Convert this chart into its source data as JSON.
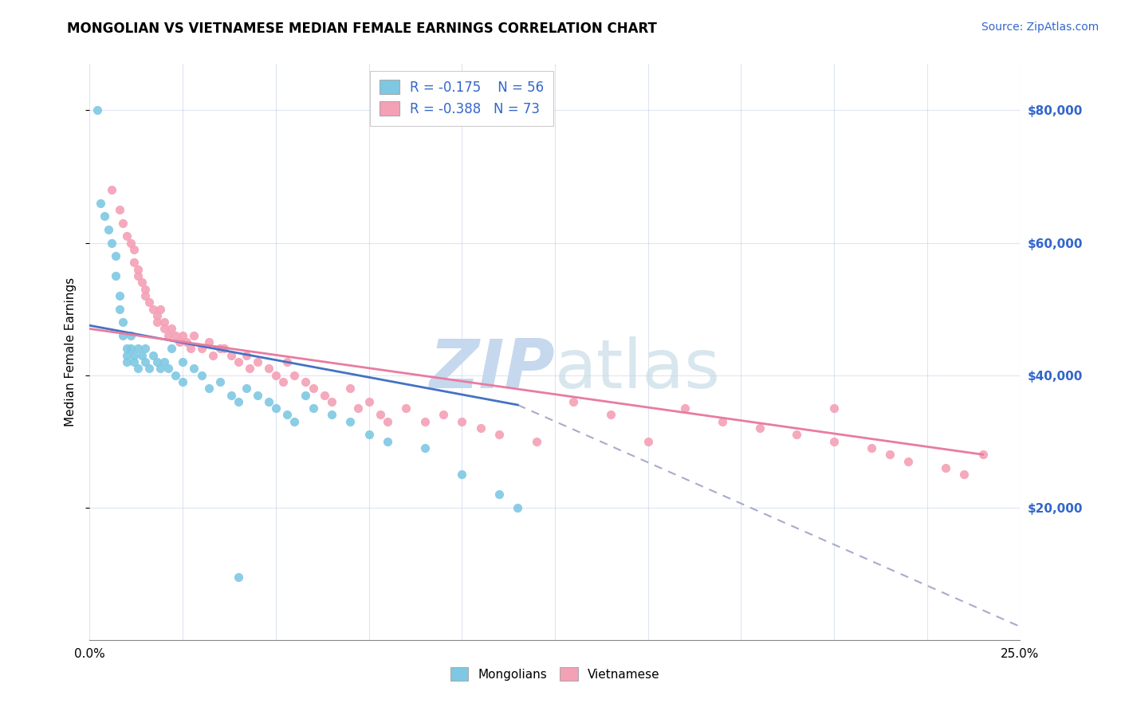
{
  "title": "MONGOLIAN VS VIETNAMESE MEDIAN FEMALE EARNINGS CORRELATION CHART",
  "source": "Source: ZipAtlas.com",
  "ylabel": "Median Female Earnings",
  "legend_mongolians": "Mongolians",
  "legend_vietnamese": "Vietnamese",
  "mongolian_R": "-0.175",
  "mongolian_N": "56",
  "vietnamese_R": "-0.388",
  "vietnamese_N": "73",
  "xlim": [
    0.0,
    0.25
  ],
  "ylim": [
    0,
    87000
  ],
  "yticks": [
    20000,
    40000,
    60000,
    80000
  ],
  "ytick_labels": [
    "$20,000",
    "$40,000",
    "$60,000",
    "$80,000"
  ],
  "color_mongolian": "#7ec8e3",
  "color_vietnamese": "#f4a0b5",
  "color_mongolian_line": "#4472c4",
  "color_vietnamese_line": "#e87ca0",
  "color_dashed_line": "#aaaacc",
  "mong_line_x0": 0.0,
  "mong_line_y0": 47500,
  "mong_line_x1": 0.115,
  "mong_line_y1": 35500,
  "viet_line_x0": 0.0,
  "viet_line_y0": 47000,
  "viet_line_x1": 0.24,
  "viet_line_y1": 28000,
  "dash_line_x0": 0.115,
  "dash_line_y0": 35500,
  "dash_line_x1": 0.25,
  "dash_line_y1": 2000,
  "mong_x": [
    0.002,
    0.003,
    0.004,
    0.005,
    0.006,
    0.007,
    0.007,
    0.008,
    0.008,
    0.009,
    0.009,
    0.01,
    0.01,
    0.01,
    0.011,
    0.011,
    0.012,
    0.012,
    0.013,
    0.013,
    0.014,
    0.015,
    0.015,
    0.016,
    0.017,
    0.018,
    0.019,
    0.02,
    0.021,
    0.022,
    0.023,
    0.025,
    0.025,
    0.028,
    0.03,
    0.032,
    0.035,
    0.038,
    0.04,
    0.042,
    0.045,
    0.048,
    0.05,
    0.053,
    0.055,
    0.058,
    0.06,
    0.065,
    0.07,
    0.075,
    0.08,
    0.09,
    0.1,
    0.11,
    0.115,
    0.04
  ],
  "mong_y": [
    80000,
    66000,
    64000,
    62000,
    60000,
    58000,
    55000,
    52000,
    50000,
    48000,
    46000,
    44000,
    43000,
    42000,
    46000,
    44000,
    43000,
    42000,
    44000,
    41000,
    43000,
    42000,
    44000,
    41000,
    43000,
    42000,
    41000,
    42000,
    41000,
    44000,
    40000,
    42000,
    39000,
    41000,
    40000,
    38000,
    39000,
    37000,
    36000,
    38000,
    37000,
    36000,
    35000,
    34000,
    33000,
    37000,
    35000,
    34000,
    33000,
    31000,
    30000,
    29000,
    25000,
    22000,
    20000,
    9500
  ],
  "viet_x": [
    0.006,
    0.008,
    0.009,
    0.01,
    0.011,
    0.012,
    0.012,
    0.013,
    0.013,
    0.014,
    0.015,
    0.015,
    0.016,
    0.017,
    0.018,
    0.018,
    0.019,
    0.02,
    0.02,
    0.021,
    0.022,
    0.023,
    0.024,
    0.025,
    0.026,
    0.027,
    0.028,
    0.03,
    0.032,
    0.033,
    0.035,
    0.036,
    0.038,
    0.04,
    0.042,
    0.043,
    0.045,
    0.048,
    0.05,
    0.052,
    0.053,
    0.055,
    0.058,
    0.06,
    0.063,
    0.065,
    0.07,
    0.072,
    0.075,
    0.078,
    0.08,
    0.085,
    0.09,
    0.095,
    0.1,
    0.105,
    0.11,
    0.12,
    0.13,
    0.14,
    0.15,
    0.16,
    0.17,
    0.18,
    0.19,
    0.2,
    0.2,
    0.21,
    0.215,
    0.22,
    0.23,
    0.235,
    0.24
  ],
  "viet_y": [
    68000,
    65000,
    63000,
    61000,
    60000,
    59000,
    57000,
    56000,
    55000,
    54000,
    53000,
    52000,
    51000,
    50000,
    49000,
    48000,
    50000,
    48000,
    47000,
    46000,
    47000,
    46000,
    45000,
    46000,
    45000,
    44000,
    46000,
    44000,
    45000,
    43000,
    44000,
    44000,
    43000,
    42000,
    43000,
    41000,
    42000,
    41000,
    40000,
    39000,
    42000,
    40000,
    39000,
    38000,
    37000,
    36000,
    38000,
    35000,
    36000,
    34000,
    33000,
    35000,
    33000,
    34000,
    33000,
    32000,
    31000,
    30000,
    36000,
    34000,
    30000,
    35000,
    33000,
    32000,
    31000,
    30000,
    35000,
    29000,
    28000,
    27000,
    26000,
    25000,
    28000
  ]
}
